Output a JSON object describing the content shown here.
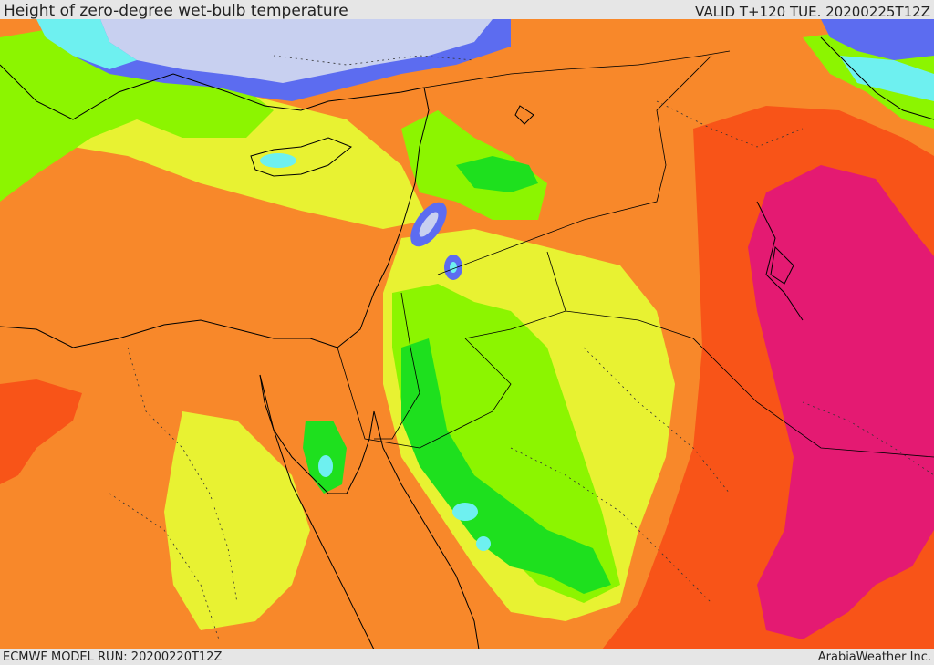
{
  "header": {
    "title": "Height of zero-degree wet-bulb temperature",
    "valid": "VALID T+120 TUE. 20200225T12Z"
  },
  "footer": {
    "model_run": "ECMWF MODEL RUN: 20200220T12Z",
    "credit": "ArabiaWeather Inc."
  },
  "palette": {
    "very_low": "#c8d0f0",
    "blue": "#5c6cf0",
    "cyan": "#6ef0f0",
    "green": "#1ee01e",
    "light_green": "#8cf500",
    "yellow": "#e8f232",
    "orange": "#ff9b1e",
    "dark_orange": "#f8882a",
    "red_orange": "#f85418",
    "magenta": "#e41a72"
  }
}
